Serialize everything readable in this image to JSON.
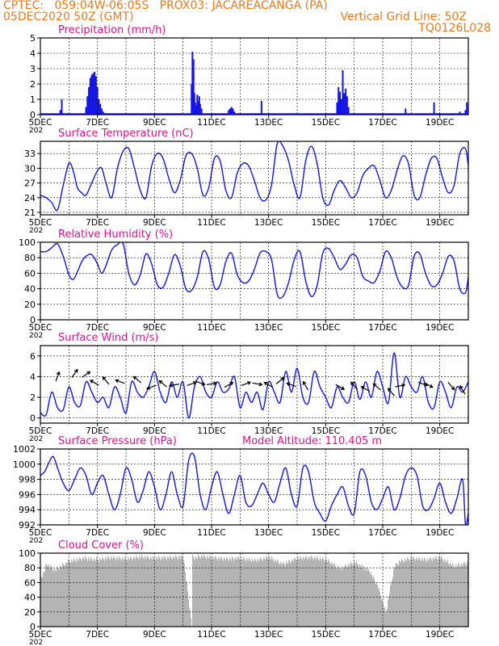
{
  "header": {
    "line1_left": "CPTEC:   059:04W-06:05S   PROX03: JACAREACANGA (PA)",
    "line2_left": "05DEC2020 50Z (GMT)",
    "line2_right": "Vertical Grid Line: 50Z",
    "line3_right": "TQ0126L028"
  },
  "colors": {
    "header": "#f07818",
    "title": "#e0128a",
    "series": "#1414e6",
    "cloud": "#b4b4b4",
    "grid": "#000000"
  },
  "x_axis": {
    "tick_labels": [
      "5DEC",
      "7DEC",
      "9DEC",
      "11DEC",
      "13DEC",
      "15DEC",
      "17DEC",
      "19DEC"
    ],
    "year_stub": "202",
    "day_range": [
      5,
      20
    ]
  },
  "chart_data": [
    {
      "type": "bar",
      "title": "Precipitation (mm/h)",
      "ylim": [
        0,
        5
      ],
      "yticks": [
        "0",
        "1",
        "2",
        "3",
        "4",
        "5"
      ],
      "x_days": [
        5.7,
        5.75,
        6.6,
        6.65,
        6.7,
        6.75,
        6.8,
        6.85,
        6.9,
        6.95,
        7.0,
        7.05,
        7.1,
        7.15,
        7.2,
        7.25,
        10.3,
        10.33,
        10.37,
        10.4,
        10.43,
        10.47,
        10.5,
        10.53,
        10.57,
        10.6,
        10.65,
        11.6,
        11.65,
        11.7,
        11.75,
        11.8,
        12.75,
        15.4,
        15.45,
        15.5,
        15.55,
        15.6,
        15.65,
        15.7,
        15.75,
        15.8,
        17.8,
        18.8,
        19.7,
        19.9,
        19.95
      ],
      "values": [
        0.3,
        1.0,
        0.5,
        1.2,
        1.8,
        2.4,
        2.6,
        2.7,
        2.8,
        2.5,
        1.8,
        1.0,
        0.7,
        0.4,
        0.2,
        0.1,
        2.0,
        4.1,
        3.6,
        1.4,
        0.8,
        0.6,
        1.3,
        0.9,
        1.2,
        0.7,
        0.4,
        0.3,
        0.4,
        0.5,
        0.4,
        0.2,
        0.9,
        0.8,
        1.8,
        1.5,
        1.0,
        2.9,
        1.4,
        1.7,
        1.2,
        0.5,
        0.4,
        0.8,
        0.2,
        0.3,
        0.8
      ]
    },
    {
      "type": "line",
      "title": "Surface Temperature (nC)",
      "ylim": [
        20.5,
        35.5
      ],
      "yticks": [
        "21",
        "24",
        "27",
        "30",
        "33"
      ],
      "x_days": [
        5.0,
        5.2,
        5.4,
        5.6,
        5.8,
        6.0,
        6.15,
        6.3,
        6.45,
        6.6,
        6.8,
        7.0,
        7.15,
        7.3,
        7.5,
        7.7,
        7.9,
        8.1,
        8.3,
        8.5,
        8.7,
        8.9,
        9.1,
        9.3,
        9.5,
        9.7,
        9.9,
        10.1,
        10.3,
        10.5,
        10.7,
        10.9,
        11.1,
        11.3,
        11.5,
        11.7,
        11.9,
        12.1,
        12.3,
        12.5,
        12.7,
        12.9,
        13.1,
        13.3,
        13.5,
        13.7,
        13.9,
        14.1,
        14.3,
        14.5,
        14.7,
        14.9,
        15.1,
        15.3,
        15.5,
        15.7,
        15.9,
        16.1,
        16.3,
        16.5,
        16.7,
        16.9,
        17.1,
        17.3,
        17.5,
        17.7,
        17.9,
        18.1,
        18.3,
        18.5,
        18.7,
        18.9,
        19.1,
        19.3,
        19.5,
        19.7,
        19.9,
        20.0
      ],
      "values": [
        24.5,
        24.0,
        23.0,
        21.5,
        26.5,
        31.0,
        29.5,
        26.0,
        25.0,
        24.5,
        27.0,
        29.5,
        30.0,
        27.0,
        24.0,
        30.0,
        33.5,
        34.0,
        30.0,
        25.5,
        24.0,
        30.5,
        33.0,
        32.0,
        28.0,
        25.0,
        27.5,
        32.5,
        33.0,
        30.0,
        24.5,
        26.0,
        32.0,
        31.5,
        25.5,
        24.0,
        29.0,
        31.0,
        30.5,
        27.5,
        24.0,
        23.5,
        26.5,
        35.0,
        34.5,
        31.5,
        26.5,
        24.0,
        31.5,
        34.5,
        31.0,
        24.0,
        22.5,
        25.5,
        27.5,
        26.0,
        24.0,
        25.0,
        28.5,
        30.0,
        30.5,
        27.5,
        24.0,
        25.5,
        29.5,
        32.5,
        31.0,
        24.5,
        24.0,
        28.5,
        32.0,
        32.0,
        28.0,
        25.0,
        26.5,
        33.0,
        34.0,
        30.5
      ]
    },
    {
      "type": "line",
      "title": "Relative Humidity (%)",
      "ylim": [
        0,
        100
      ],
      "yticks": [
        "0",
        "20",
        "40",
        "60",
        "80",
        "100"
      ],
      "x_days": [
        5.0,
        5.2,
        5.4,
        5.6,
        5.8,
        6.0,
        6.15,
        6.3,
        6.45,
        6.6,
        6.8,
        7.0,
        7.15,
        7.3,
        7.5,
        7.7,
        7.9,
        8.1,
        8.3,
        8.5,
        8.7,
        8.9,
        9.1,
        9.3,
        9.5,
        9.7,
        9.9,
        10.1,
        10.3,
        10.5,
        10.7,
        10.9,
        11.1,
        11.3,
        11.5,
        11.7,
        11.9,
        12.1,
        12.3,
        12.5,
        12.7,
        12.9,
        13.1,
        13.3,
        13.5,
        13.7,
        13.9,
        14.1,
        14.3,
        14.5,
        14.7,
        14.9,
        15.1,
        15.3,
        15.5,
        15.7,
        15.9,
        16.1,
        16.3,
        16.5,
        16.7,
        16.9,
        17.1,
        17.3,
        17.5,
        17.7,
        17.9,
        18.1,
        18.3,
        18.5,
        18.7,
        18.9,
        19.1,
        19.3,
        19.5,
        19.7,
        19.9,
        20.0
      ],
      "values": [
        88,
        88,
        93,
        98,
        82,
        58,
        52,
        62,
        75,
        82,
        84,
        72,
        60,
        70,
        90,
        97,
        98,
        60,
        45,
        58,
        85,
        72,
        45,
        42,
        60,
        84,
        70,
        40,
        38,
        55,
        88,
        78,
        42,
        45,
        75,
        86,
        58,
        48,
        50,
        65,
        86,
        88,
        78,
        33,
        30,
        48,
        78,
        88,
        50,
        30,
        44,
        86,
        92,
        80,
        65,
        72,
        84,
        80,
        56,
        50,
        48,
        63,
        88,
        80,
        55,
        42,
        44,
        82,
        85,
        60,
        44,
        45,
        60,
        82,
        76,
        40,
        35,
        55
      ]
    },
    {
      "type": "line",
      "title": "Surface Wind (m/s)",
      "ylim": [
        -0.5,
        7
      ],
      "yticks": [
        "0",
        "2",
        "4",
        "6"
      ],
      "x_days": [
        5.0,
        5.2,
        5.4,
        5.6,
        5.8,
        6.0,
        6.2,
        6.4,
        6.6,
        6.8,
        7.0,
        7.2,
        7.4,
        7.6,
        7.8,
        8.0,
        8.2,
        8.4,
        8.6,
        8.8,
        9.0,
        9.2,
        9.4,
        9.6,
        9.8,
        10.0,
        10.2,
        10.4,
        10.6,
        10.8,
        11.0,
        11.2,
        11.4,
        11.6,
        11.8,
        12.0,
        12.2,
        12.4,
        12.6,
        12.8,
        13.0,
        13.2,
        13.4,
        13.6,
        13.8,
        14.0,
        14.2,
        14.4,
        14.6,
        14.8,
        15.0,
        15.2,
        15.4,
        15.6,
        15.8,
        16.0,
        16.2,
        16.4,
        16.6,
        16.8,
        17.0,
        17.2,
        17.4,
        17.6,
        17.8,
        18.0,
        18.2,
        18.4,
        18.6,
        18.8,
        19.0,
        19.2,
        19.4,
        19.6,
        19.8,
        20.0
      ],
      "values": [
        0.5,
        0.3,
        2.5,
        1.0,
        0.8,
        3.0,
        1.5,
        1.2,
        3.5,
        2.5,
        1.5,
        2.0,
        1.0,
        3.0,
        2.0,
        0.5,
        3.5,
        2.5,
        2.0,
        3.0,
        4.5,
        2.5,
        1.5,
        3.5,
        2.0,
        3.5,
        0.0,
        3.0,
        4.0,
        2.5,
        2.0,
        3.5,
        2.5,
        2.8,
        4.0,
        1.0,
        2.5,
        1.5,
        2.5,
        0.8,
        3.5,
        2.5,
        1.5,
        4.5,
        2.5,
        4.8,
        2.0,
        1.5,
        4.5,
        3.0,
        2.0,
        1.0,
        3.0,
        2.0,
        1.5,
        3.5,
        1.8,
        3.5,
        2.0,
        4.5,
        3.0,
        1.5,
        6.3,
        2.0,
        4.0,
        3.0,
        2.5,
        4.0,
        1.5,
        1.0,
        3.5,
        2.5,
        1.0,
        3.0,
        2.5,
        3.5
      ]
    },
    {
      "type": "line",
      "title": "Surface Pressure (hPa)",
      "annotation": "Model Altitude: 110.405 m",
      "ylim": [
        992,
        1002
      ],
      "yticks": [
        "992",
        "994",
        "996",
        "998",
        "1000",
        "1002"
      ],
      "x_days": [
        5.0,
        5.15,
        5.3,
        5.45,
        5.6,
        5.8,
        6.0,
        6.2,
        6.4,
        6.6,
        6.8,
        7.0,
        7.2,
        7.4,
        7.6,
        7.8,
        8.0,
        8.2,
        8.4,
        8.6,
        8.8,
        9.0,
        9.2,
        9.4,
        9.6,
        9.8,
        10.0,
        10.2,
        10.4,
        10.6,
        10.8,
        11.0,
        11.2,
        11.4,
        11.6,
        11.8,
        12.0,
        12.2,
        12.4,
        12.6,
        12.8,
        13.0,
        13.2,
        13.4,
        13.6,
        13.8,
        14.0,
        14.2,
        14.4,
        14.6,
        14.8,
        15.0,
        15.2,
        15.4,
        15.6,
        15.8,
        16.0,
        16.2,
        16.4,
        16.6,
        16.8,
        17.0,
        17.2,
        17.4,
        17.6,
        17.8,
        18.0,
        18.2,
        18.4,
        18.6,
        18.8,
        19.0,
        19.2,
        19.4,
        19.6,
        19.8,
        19.9,
        20.0
      ],
      "values": [
        998.5,
        999.0,
        1000.2,
        1001.0,
        999.5,
        997.5,
        996.5,
        998.0,
        999.5,
        998.5,
        996.0,
        997.5,
        998.5,
        996.0,
        994.0,
        996.0,
        999.5,
        998.0,
        995.0,
        996.5,
        999.0,
        997.0,
        994.0,
        996.0,
        999.0,
        996.0,
        994.5,
        1000.5,
        1001.0,
        996.0,
        994.0,
        997.0,
        999.0,
        996.0,
        993.5,
        996.0,
        998.5,
        995.0,
        994.5,
        996.0,
        997.5,
        996.0,
        995.0,
        997.5,
        999.5,
        996.0,
        994.5,
        999.5,
        999.0,
        995.0,
        993.5,
        992.5,
        994.5,
        996.0,
        997.0,
        994.5,
        993.5,
        999.0,
        998.5,
        995.0,
        994.0,
        995.5,
        997.0,
        994.0,
        995.5,
        998.5,
        999.5,
        998.5,
        994.5,
        994.0,
        995.5,
        997.5,
        995.0,
        993.5,
        995.5,
        998.0,
        992.0,
        993.5
      ]
    },
    {
      "type": "bar",
      "title": "Cloud Cover (%)",
      "ylim": [
        0,
        100
      ],
      "yticks": [
        "0",
        "20",
        "40",
        "60",
        "80",
        "100"
      ],
      "profile_days": [
        5.0,
        5.1,
        5.2,
        5.5,
        6.0,
        6.5,
        7.0,
        7.5,
        8.0,
        8.5,
        9.0,
        9.5,
        10.0,
        10.3,
        10.32,
        10.4,
        10.6,
        11.0,
        11.5,
        12.0,
        12.5,
        13.0,
        13.5,
        14.0,
        14.5,
        15.0,
        15.5,
        16.0,
        16.5,
        16.8,
        17.0,
        17.1,
        17.2,
        17.4,
        17.6,
        18.0,
        18.5,
        19.0,
        19.5,
        20.0
      ],
      "profile_values": [
        70,
        75,
        88,
        80,
        92,
        96,
        94,
        97,
        95,
        98,
        96,
        97,
        98,
        3,
        98,
        96,
        99,
        97,
        95,
        96,
        93,
        97,
        88,
        96,
        97,
        94,
        82,
        90,
        80,
        60,
        35,
        20,
        45,
        85,
        92,
        96,
        94,
        97,
        85,
        90
      ]
    }
  ]
}
